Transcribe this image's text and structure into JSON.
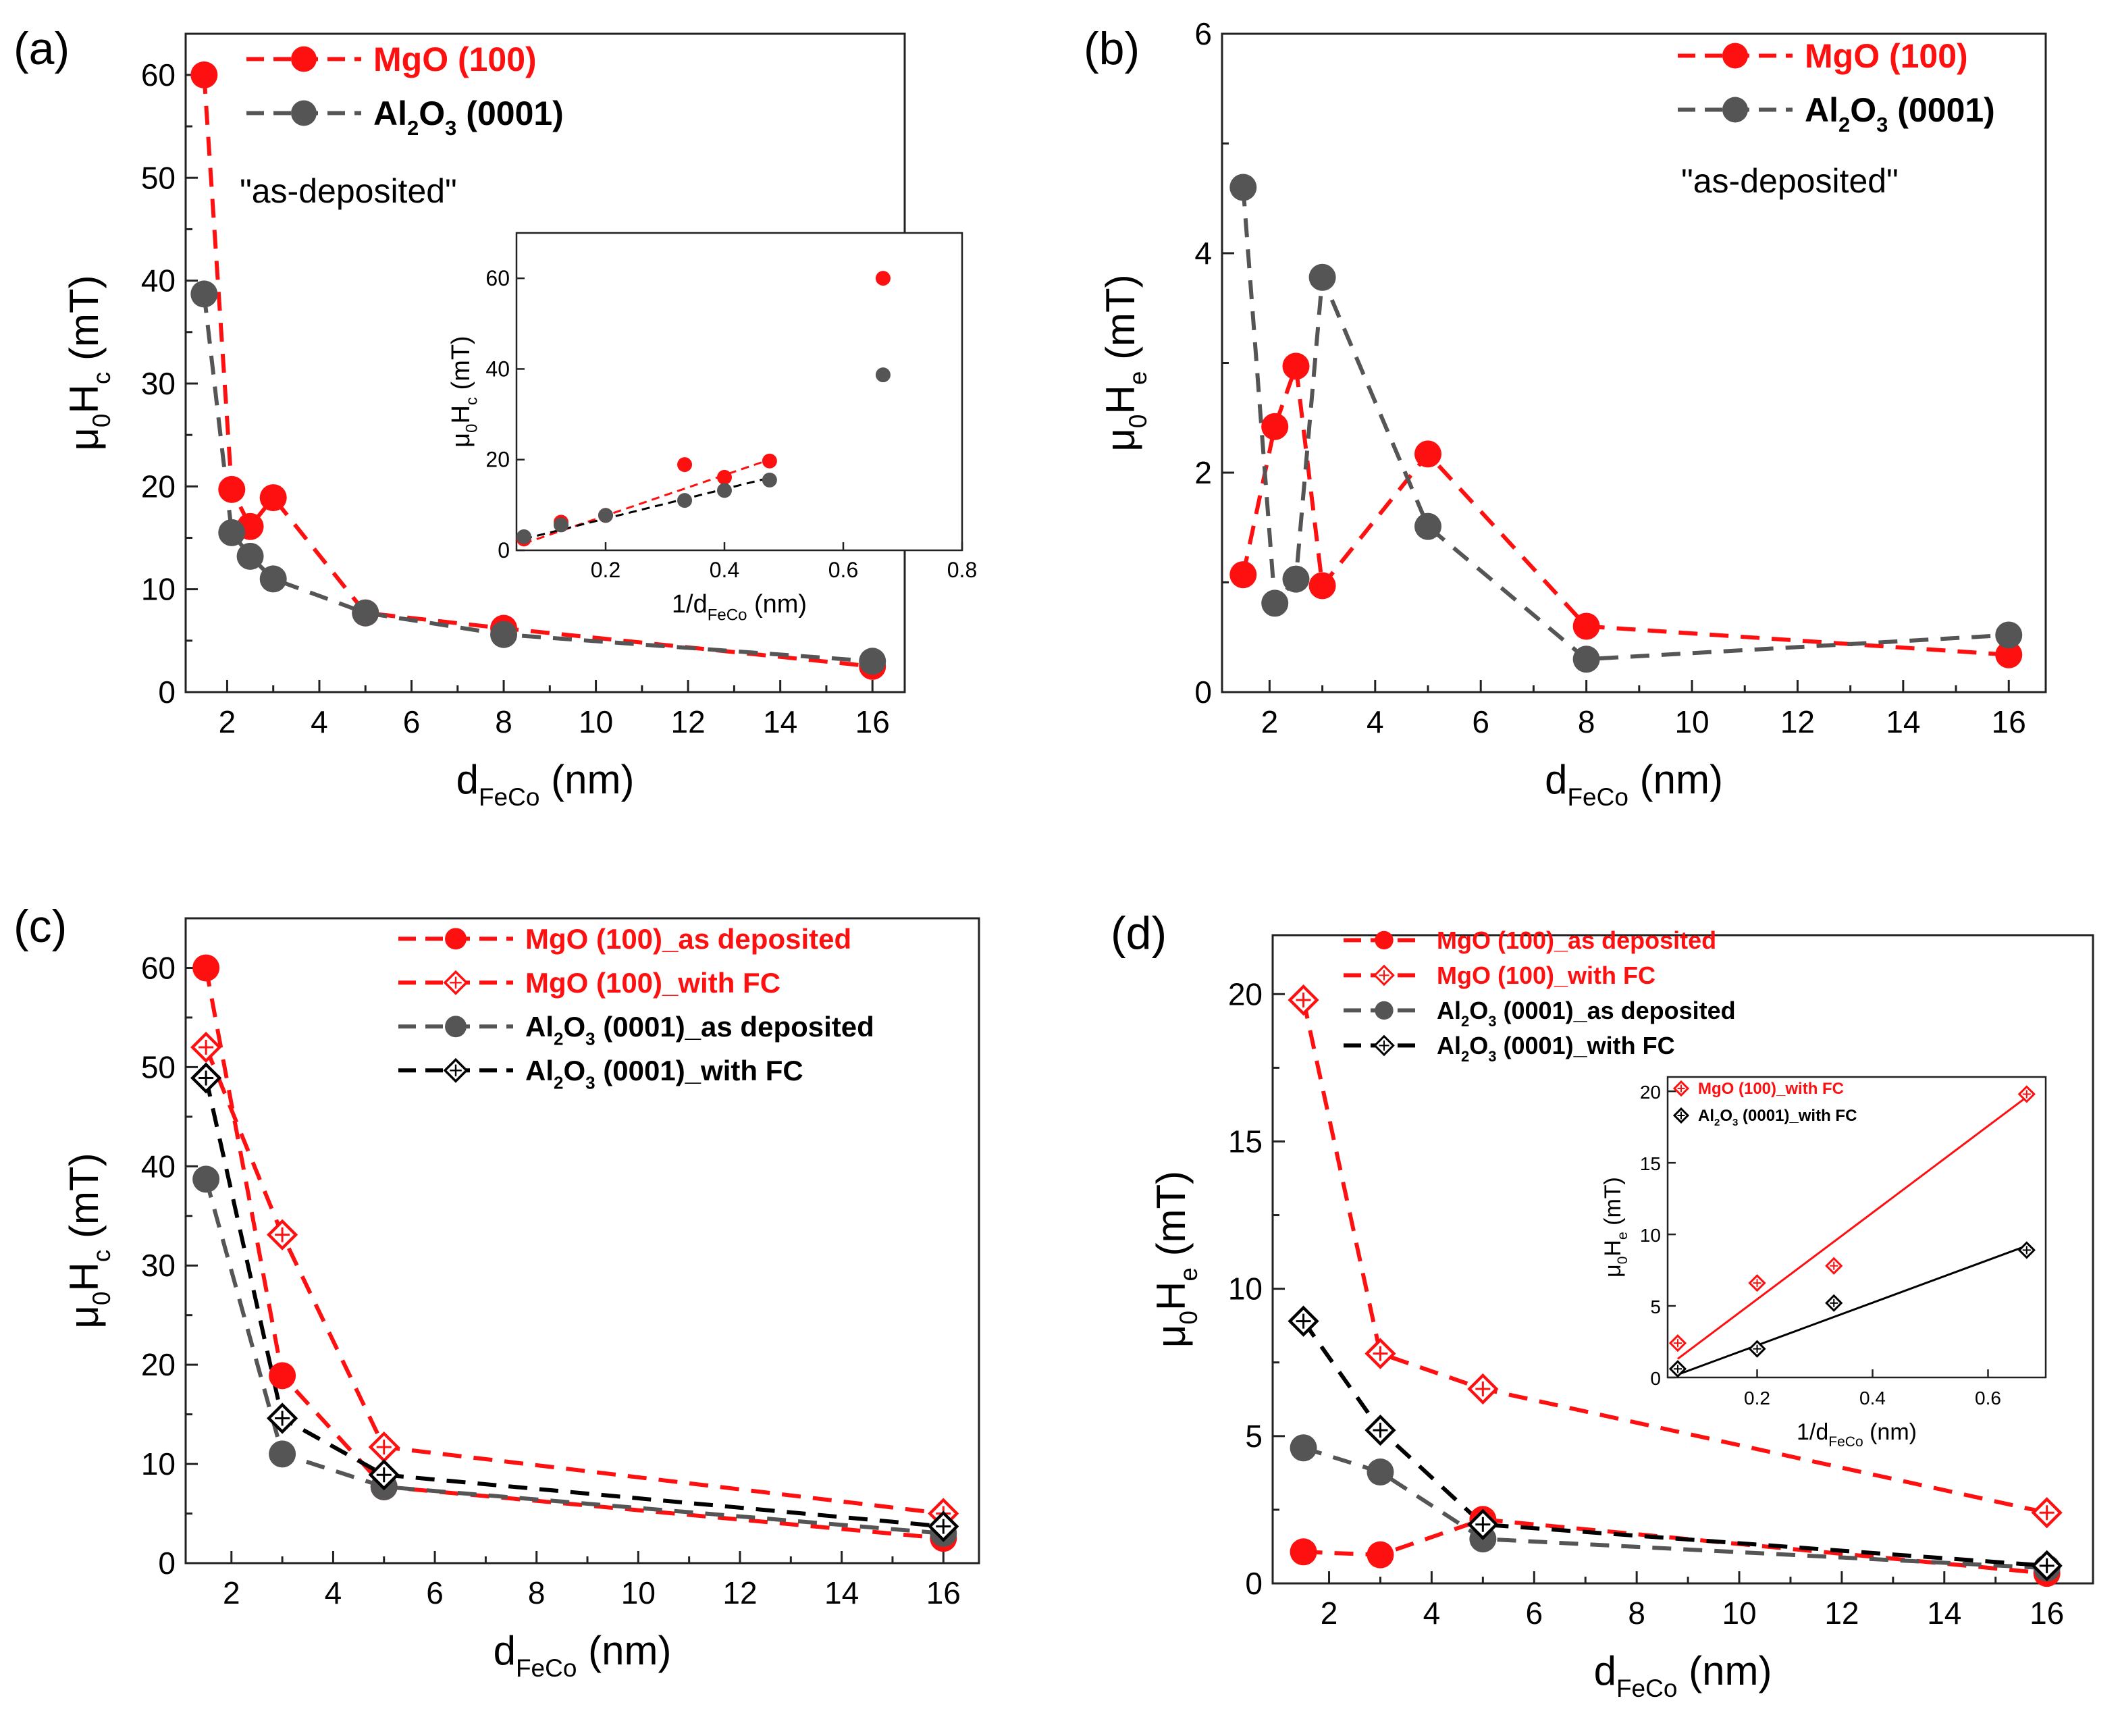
{
  "figure": {
    "panel_labels": [
      "(a)",
      "(b)",
      "(c)",
      "(d)"
    ]
  },
  "colors": {
    "red": "#ff1010",
    "gray": "#555555",
    "black": "#000000"
  },
  "chart_data": [
    {
      "id": "a",
      "type": "line",
      "panel_label": "(a)",
      "title": "",
      "xlabel": "d",
      "xlabel_sub": "FeCo",
      "xlabel_unit": " (nm)",
      "ylabel": "μ",
      "ylabel_sub1": "0",
      "ylabel_mid": "H",
      "ylabel_sub2": "c",
      "ylabel_unit": " (mT)",
      "xlim": [
        1.1,
        16.7
      ],
      "ylim": [
        0,
        64
      ],
      "xticks": [
        2,
        4,
        6,
        8,
        10,
        12,
        14,
        16
      ],
      "yticks": [
        0,
        10,
        20,
        30,
        40,
        50,
        60
      ],
      "annotation": "\"as-deposited\"",
      "series": [
        {
          "name": "MgO (100)",
          "color": "red",
          "marker": "circle",
          "x": [
            1.5,
            2.1,
            2.5,
            3,
            5,
            8,
            16
          ],
          "y": [
            60,
            19.7,
            16.1,
            18.9,
            7.7,
            6.2,
            2.5
          ]
        },
        {
          "name": "Al2O3 (0001)",
          "color": "gray",
          "marker": "circle",
          "x": [
            1.5,
            2.1,
            2.5,
            3,
            5,
            8,
            16
          ],
          "y": [
            38.7,
            15.5,
            13.2,
            11,
            7.7,
            5.6,
            3
          ]
        }
      ],
      "inset": {
        "type": "scatter",
        "xlabel": "1/d",
        "xlabel_sub": "FeCo",
        "xlabel_unit": " (nm)",
        "ylabel": "μ",
        "ylabel_sub1": "0",
        "ylabel_mid": "H",
        "ylabel_sub2": "c",
        "ylabel_unit": " (mT)",
        "xlim": [
          0.05,
          0.8
        ],
        "ylim": [
          0,
          70
        ],
        "xticks": [
          0.2,
          0.4,
          0.6,
          0.8
        ],
        "yticks": [
          0,
          20,
          40,
          60
        ],
        "series": [
          {
            "name": "MgO (100)",
            "color": "red",
            "x": [
              0.0625,
              0.125,
              0.2,
              0.333,
              0.4,
              0.476,
              0.667
            ],
            "y": [
              2.5,
              6.2,
              7.7,
              18.9,
              16.1,
              19.7,
              60
            ]
          },
          {
            "name": "Al2O3 (0001)",
            "color": "gray",
            "x": [
              0.0625,
              0.125,
              0.2,
              0.333,
              0.4,
              0.476,
              0.667
            ],
            "y": [
              3,
              5.6,
              7.7,
              11,
              13.2,
              15.5,
              38.7
            ]
          }
        ],
        "fits": [
          {
            "color": "red",
            "x": [
              0.0625,
              0.476
            ],
            "y": [
              1.5,
              20
            ]
          },
          {
            "color": "black",
            "x": [
              0.0625,
              0.476
            ],
            "y": [
              2.5,
              16
            ]
          }
        ]
      }
    },
    {
      "id": "b",
      "type": "line",
      "panel_label": "(b)",
      "title": "",
      "xlabel": "d",
      "xlabel_sub": "FeCo",
      "xlabel_unit": " (nm)",
      "ylabel": "μ",
      "ylabel_sub1": "0",
      "ylabel_mid": "H",
      "ylabel_sub2": "e",
      "ylabel_unit": " (mT)",
      "xlim": [
        1.1,
        16.7
      ],
      "ylim": [
        0,
        6
      ],
      "xticks": [
        2,
        4,
        6,
        8,
        10,
        12,
        14,
        16
      ],
      "yticks": [
        0,
        2,
        4,
        6
      ],
      "annotation": "\"as-deposited\"",
      "series": [
        {
          "name": "MgO (100)",
          "color": "red",
          "marker": "circle",
          "x": [
            1.5,
            2.1,
            2.5,
            3,
            5,
            8,
            16
          ],
          "y": [
            1.07,
            2.42,
            2.97,
            0.97,
            2.17,
            0.6,
            0.34
          ]
        },
        {
          "name": "Al2O3 (0001)",
          "color": "gray",
          "marker": "circle",
          "x": [
            1.5,
            2.1,
            2.5,
            3,
            5,
            8,
            16
          ],
          "y": [
            4.6,
            0.81,
            1.03,
            3.78,
            1.51,
            0.3,
            0.52
          ]
        }
      ]
    },
    {
      "id": "c",
      "type": "line",
      "panel_label": "(c)",
      "title": "",
      "xlabel": "d",
      "xlabel_sub": "FeCo",
      "xlabel_unit": " (nm)",
      "ylabel": "μ",
      "ylabel_sub1": "0",
      "ylabel_mid": "H",
      "ylabel_sub2": "c",
      "ylabel_unit": " (mT)",
      "xlim": [
        1.1,
        16.7
      ],
      "ylim": [
        0,
        65
      ],
      "xticks": [
        2,
        4,
        6,
        8,
        10,
        12,
        14,
        16
      ],
      "yticks": [
        0,
        10,
        20,
        30,
        40,
        50,
        60
      ],
      "series": [
        {
          "name": "MgO (100)_as deposited",
          "color": "red",
          "marker": "circle",
          "x": [
            1.5,
            3,
            5,
            16
          ],
          "y": [
            60,
            18.9,
            7.7,
            2.5
          ]
        },
        {
          "name": "MgO (100)_with FC",
          "color": "red",
          "marker": "diamond",
          "x": [
            1.5,
            3,
            5,
            16
          ],
          "y": [
            52,
            33.1,
            11.7,
            5
          ]
        },
        {
          "name": "Al2O3 (0001)_as deposited",
          "color": "gray",
          "marker": "circle",
          "x": [
            1.5,
            3,
            5,
            16
          ],
          "y": [
            38.7,
            11,
            7.7,
            3
          ]
        },
        {
          "name": "Al2O3 (0001)_with FC",
          "color": "black",
          "marker": "diamond",
          "x": [
            1.5,
            3,
            5,
            16
          ],
          "y": [
            48.9,
            14.6,
            8.9,
            3.7
          ]
        }
      ]
    },
    {
      "id": "d",
      "type": "line",
      "panel_label": "(d)",
      "title": "",
      "xlabel": "d",
      "xlabel_sub": "FeCo",
      "xlabel_unit": " (nm)",
      "ylabel": "μ",
      "ylabel_sub1": "0",
      "ylabel_mid": "H",
      "ylabel_sub2": "e",
      "ylabel_unit": " (mT)",
      "xlim": [
        0.9,
        16.9
      ],
      "ylim": [
        0,
        22
      ],
      "xticks": [
        2,
        4,
        6,
        8,
        10,
        12,
        14,
        16
      ],
      "yticks": [
        0,
        5,
        10,
        15,
        20
      ],
      "series": [
        {
          "name": "MgO (100)_as deposited",
          "color": "red",
          "marker": "circle",
          "x": [
            1.5,
            3,
            5,
            16
          ],
          "y": [
            1.07,
            0.97,
            2.17,
            0.34
          ]
        },
        {
          "name": "MgO (100)_with FC",
          "color": "red",
          "marker": "diamond",
          "x": [
            1.5,
            3,
            5,
            16
          ],
          "y": [
            19.8,
            7.8,
            6.6,
            2.4
          ]
        },
        {
          "name": "Al2O3 (0001)_as deposited",
          "color": "gray",
          "marker": "circle",
          "x": [
            1.5,
            3,
            5,
            16
          ],
          "y": [
            4.6,
            3.78,
            1.51,
            0.52
          ]
        },
        {
          "name": "Al2O3 (0001)_with FC",
          "color": "black",
          "marker": "diamond",
          "x": [
            1.5,
            3,
            5,
            16
          ],
          "y": [
            8.9,
            5.2,
            2,
            0.6
          ]
        }
      ],
      "inset": {
        "type": "scatter",
        "xlabel": "1/d",
        "xlabel_sub": "FeCo",
        "xlabel_unit": " (nm)",
        "ylabel": "μ",
        "ylabel_sub1": "0",
        "ylabel_mid": "H",
        "ylabel_sub2": "e",
        "ylabel_unit": " (mT)",
        "xlim": [
          0.045,
          0.7
        ],
        "ylim": [
          0,
          21
        ],
        "xticks": [
          0.2,
          0.4,
          0.6
        ],
        "yticks": [
          0,
          5,
          10,
          15,
          20
        ],
        "legend": [
          "MgO (100)_with FC",
          "Al2O3 (0001)_with FC"
        ],
        "series": [
          {
            "name": "MgO (100)_with FC",
            "color": "red",
            "x": [
              0.0625,
              0.2,
              0.333,
              0.667
            ],
            "y": [
              2.4,
              6.6,
              7.8,
              19.8
            ]
          },
          {
            "name": "Al2O3 (0001)_with FC",
            "color": "black",
            "x": [
              0.0625,
              0.2,
              0.333,
              0.667
            ],
            "y": [
              0.6,
              2,
              5.2,
              8.9
            ]
          }
        ],
        "fits": [
          {
            "color": "red",
            "x": [
              0.0625,
              0.667
            ],
            "y": [
              1.3,
              19.6
            ]
          },
          {
            "color": "black",
            "x": [
              0.0625,
              0.667
            ],
            "y": [
              0.2,
              9.2
            ]
          }
        ]
      }
    }
  ]
}
